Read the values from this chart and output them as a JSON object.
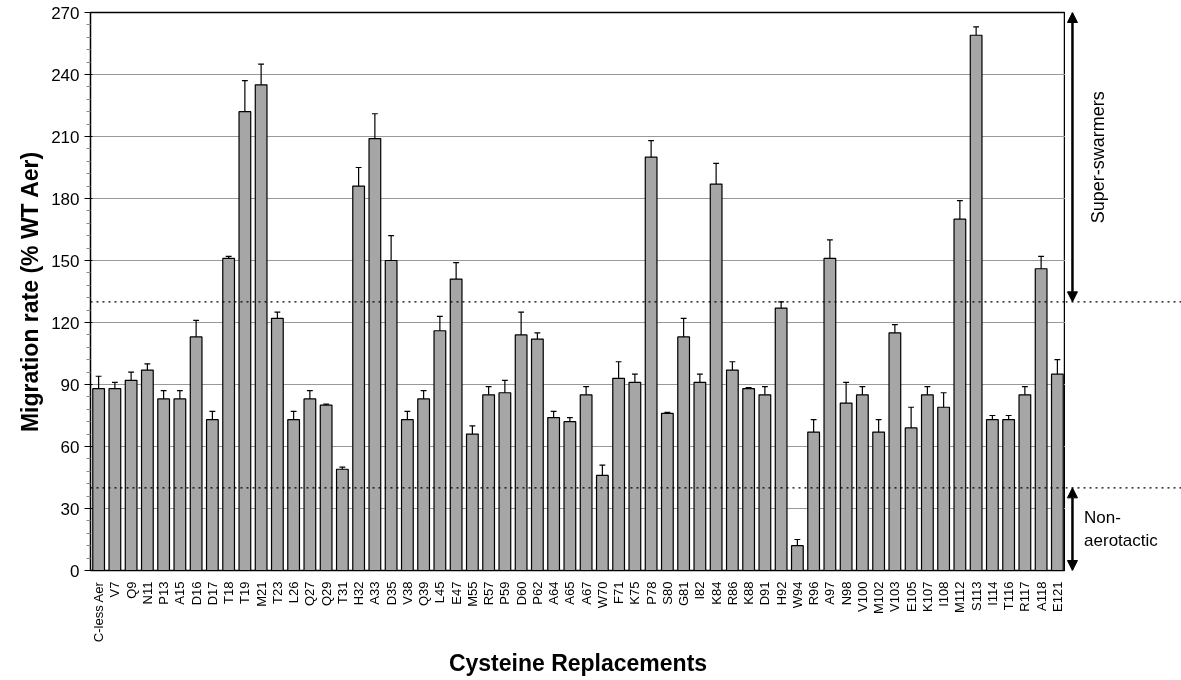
{
  "chart_data": {
    "type": "bar",
    "xlabel": "Cysteine Replacements",
    "ylabel": "Migration rate (% WT Aer)",
    "categories": [
      "C-less Aer",
      "V7",
      "Q9",
      "N11",
      "P13",
      "A15",
      "D16",
      "D17",
      "T18",
      "T19",
      "M21",
      "T23",
      "L26",
      "Q27",
      "Q29",
      "T31",
      "H32",
      "A33",
      "D35",
      "V38",
      "Q39",
      "L45",
      "E47",
      "M55",
      "R57",
      "P59",
      "D60",
      "P62",
      "A64",
      "A65",
      "A67",
      "W70",
      "F71",
      "K75",
      "P78",
      "S80",
      "G81",
      "I82",
      "K84",
      "R86",
      "K88",
      "D91",
      "H92",
      "W94",
      "R96",
      "A97",
      "N98",
      "V100",
      "M102",
      "V103",
      "E105",
      "K107",
      "I108",
      "M112",
      "S113",
      "I114",
      "T116",
      "R117",
      "A118",
      "E121"
    ],
    "values": [
      88,
      88,
      92,
      97,
      83,
      83,
      113,
      73,
      151,
      222,
      235,
      122,
      73,
      83,
      80,
      49,
      186,
      209,
      150,
      73,
      83,
      116,
      141,
      66,
      85,
      86,
      114,
      112,
      74,
      72,
      85,
      46,
      93,
      91,
      200,
      76,
      113,
      91,
      187,
      97,
      88,
      85,
      127,
      12,
      67,
      151,
      81,
      85,
      67,
      115,
      69,
      85,
      79,
      170,
      259,
      73,
      73,
      85,
      146,
      95
    ],
    "errors": [
      [
        88,
        94
      ],
      [
        88,
        91
      ],
      [
        92,
        96
      ],
      [
        97,
        100
      ],
      [
        83,
        87
      ],
      [
        83,
        87
      ],
      [
        113,
        121
      ],
      [
        73,
        77
      ],
      [
        151,
        152
      ],
      [
        222,
        237
      ],
      [
        235,
        245
      ],
      [
        122,
        125
      ],
      [
        73,
        77
      ],
      [
        83,
        87
      ],
      [
        80,
        80.5
      ],
      [
        49,
        50
      ],
      [
        186,
        195
      ],
      [
        209,
        221
      ],
      [
        150,
        162
      ],
      [
        73,
        77
      ],
      [
        83,
        87
      ],
      [
        116,
        123
      ],
      [
        141,
        149
      ],
      [
        66,
        70
      ],
      [
        85,
        89
      ],
      [
        86,
        92
      ],
      [
        114,
        125
      ],
      [
        112,
        115
      ],
      [
        74,
        77
      ],
      [
        72,
        74
      ],
      [
        85,
        89
      ],
      [
        46,
        51
      ],
      [
        93,
        101
      ],
      [
        91,
        95
      ],
      [
        200,
        208
      ],
      [
        76,
        76.5
      ],
      [
        113,
        122
      ],
      [
        91,
        95
      ],
      [
        187,
        197
      ],
      [
        97,
        101
      ],
      [
        88,
        88.5
      ],
      [
        85,
        89
      ],
      [
        127,
        130
      ],
      [
        12,
        15
      ],
      [
        67,
        73
      ],
      [
        151,
        160
      ],
      [
        81,
        91
      ],
      [
        85,
        89
      ],
      [
        67,
        73
      ],
      [
        115,
        119
      ],
      [
        69,
        79
      ],
      [
        85,
        89
      ],
      [
        79,
        86
      ],
      [
        170,
        179
      ],
      [
        259,
        263
      ],
      [
        73,
        75
      ],
      [
        73,
        75
      ],
      [
        85,
        89
      ],
      [
        146,
        152
      ],
      [
        95,
        102
      ]
    ],
    "color": "#a6a6a6",
    "ylim": [
      0,
      270
    ],
    "yticks": [
      0,
      30,
      60,
      90,
      120,
      150,
      180,
      210,
      240,
      270
    ],
    "grid": "y",
    "ref_lines": [
      {
        "axis": "y",
        "value": 130,
        "line_style": "dotted",
        "color": "#000000"
      },
      {
        "axis": "y",
        "value": 40,
        "line_style": "dotted",
        "color": "#000000"
      }
    ],
    "annotations": [
      "Super-swarmers",
      "Non-aerotactic"
    ]
  }
}
